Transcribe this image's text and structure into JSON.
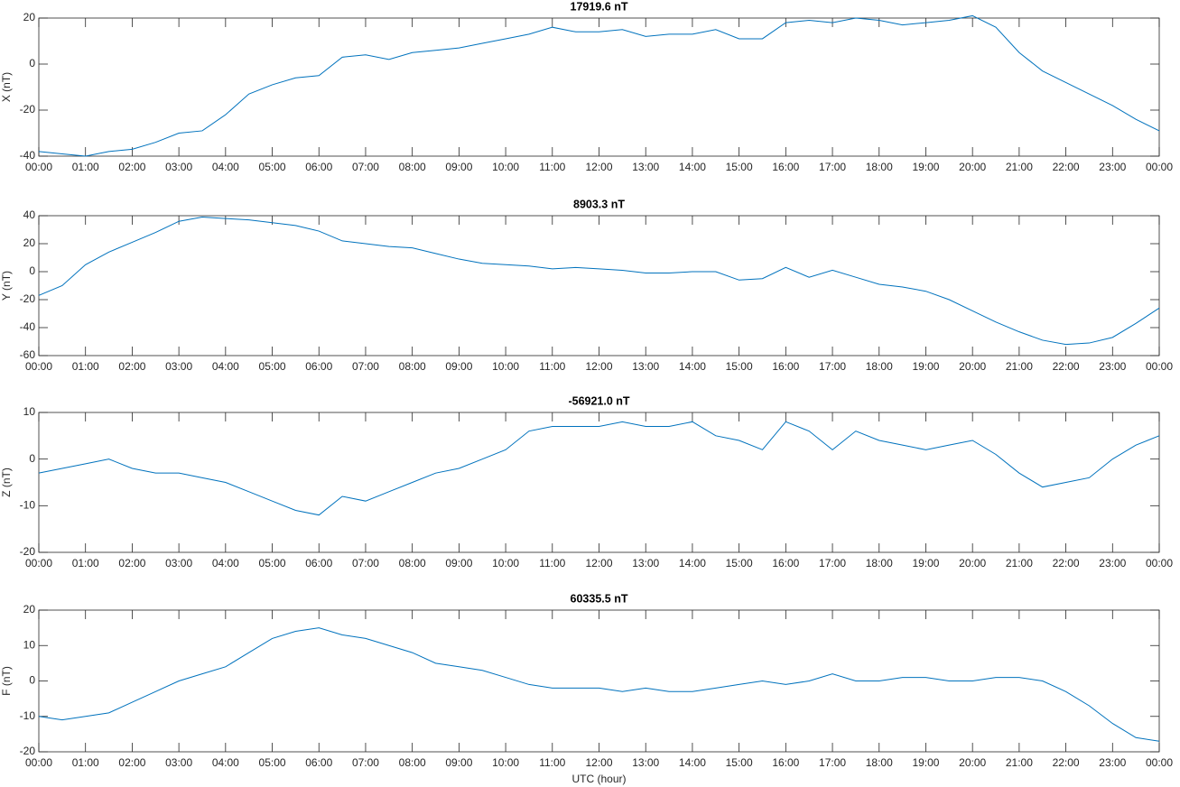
{
  "chart_data": [
    {
      "type": "line",
      "title": "17919.6 nT",
      "ylabel": "X (nT)",
      "xlim": [
        0,
        24
      ],
      "ylim": [
        -40,
        20
      ],
      "yticks": [
        -40,
        -20,
        0,
        20
      ],
      "xticks": [
        {
          "value": 0,
          "label": "00:00"
        },
        {
          "value": 1,
          "label": "01:00"
        },
        {
          "value": 2,
          "label": "02:00"
        },
        {
          "value": 3,
          "label": "03:00"
        },
        {
          "value": 4,
          "label": "04:00"
        },
        {
          "value": 5,
          "label": "05:00"
        },
        {
          "value": 6,
          "label": "06:00"
        },
        {
          "value": 7,
          "label": "07:00"
        },
        {
          "value": 8,
          "label": "08:00"
        },
        {
          "value": 9,
          "label": "09:00"
        },
        {
          "value": 10,
          "label": "10:00"
        },
        {
          "value": 11,
          "label": "11:00"
        },
        {
          "value": 12,
          "label": "12:00"
        },
        {
          "value": 13,
          "label": "13:00"
        },
        {
          "value": 14,
          "label": "14:00"
        },
        {
          "value": 15,
          "label": "15:00"
        },
        {
          "value": 16,
          "label": "16:00"
        },
        {
          "value": 17,
          "label": "17:00"
        },
        {
          "value": 18,
          "label": "18:00"
        },
        {
          "value": 19,
          "label": "19:00"
        },
        {
          "value": 20,
          "label": "20:00"
        },
        {
          "value": 21,
          "label": "21:00"
        },
        {
          "value": 22,
          "label": "22:00"
        },
        {
          "value": 23,
          "label": "23:00"
        },
        {
          "value": 24,
          "label": "00:00"
        }
      ],
      "x": [
        0,
        0.5,
        1,
        1.5,
        2,
        2.5,
        3,
        3.5,
        4,
        4.5,
        5,
        5.5,
        6,
        6.5,
        7,
        7.5,
        8,
        8.5,
        9,
        9.5,
        10,
        10.5,
        11,
        11.5,
        12,
        12.5,
        13,
        13.5,
        14,
        14.5,
        15,
        15.5,
        16,
        16.5,
        17,
        17.5,
        18,
        18.5,
        19,
        19.5,
        20,
        20.5,
        21,
        21.5,
        22,
        22.5,
        23,
        23.5,
        24
      ],
      "series": [
        {
          "color": "#0072bd",
          "values": [
            -38,
            -39,
            -40,
            -38,
            -37,
            -34,
            -30,
            -29,
            -22,
            -13,
            -9,
            -6,
            -5,
            3,
            4,
            2,
            5,
            6,
            7,
            9,
            11,
            13,
            16,
            14,
            14,
            15,
            12,
            13,
            13,
            15,
            11,
            11,
            18,
            19,
            18,
            20,
            19,
            17,
            18,
            19,
            21,
            16,
            5,
            -3,
            -8,
            -13,
            -18,
            -24,
            -29
          ]
        }
      ]
    },
    {
      "type": "line",
      "title": "8903.3 nT",
      "ylabel": "Y (nT)",
      "xlim": [
        0,
        24
      ],
      "ylim": [
        -60,
        40
      ],
      "yticks": [
        -60,
        -40,
        -20,
        0,
        20,
        40
      ],
      "xticks": [
        {
          "value": 0,
          "label": "00:00"
        },
        {
          "value": 1,
          "label": "01:00"
        },
        {
          "value": 2,
          "label": "02:00"
        },
        {
          "value": 3,
          "label": "03:00"
        },
        {
          "value": 4,
          "label": "04:00"
        },
        {
          "value": 5,
          "label": "05:00"
        },
        {
          "value": 6,
          "label": "06:00"
        },
        {
          "value": 7,
          "label": "07:00"
        },
        {
          "value": 8,
          "label": "08:00"
        },
        {
          "value": 9,
          "label": "09:00"
        },
        {
          "value": 10,
          "label": "10:00"
        },
        {
          "value": 11,
          "label": "11:00"
        },
        {
          "value": 12,
          "label": "12:00"
        },
        {
          "value": 13,
          "label": "13:00"
        },
        {
          "value": 14,
          "label": "14:00"
        },
        {
          "value": 15,
          "label": "15:00"
        },
        {
          "value": 16,
          "label": "16:00"
        },
        {
          "value": 17,
          "label": "17:00"
        },
        {
          "value": 18,
          "label": "18:00"
        },
        {
          "value": 19,
          "label": "19:00"
        },
        {
          "value": 20,
          "label": "20:00"
        },
        {
          "value": 21,
          "label": "21:00"
        },
        {
          "value": 22,
          "label": "22:00"
        },
        {
          "value": 23,
          "label": "23:00"
        },
        {
          "value": 24,
          "label": "00:00"
        }
      ],
      "x": [
        0,
        0.5,
        1,
        1.5,
        2,
        2.5,
        3,
        3.5,
        4,
        4.5,
        5,
        5.5,
        6,
        6.5,
        7,
        7.5,
        8,
        8.5,
        9,
        9.5,
        10,
        10.5,
        11,
        11.5,
        12,
        12.5,
        13,
        13.5,
        14,
        14.5,
        15,
        15.5,
        16,
        16.5,
        17,
        17.5,
        18,
        18.5,
        19,
        19.5,
        20,
        20.5,
        21,
        21.5,
        22,
        22.5,
        23,
        23.5,
        24
      ],
      "series": [
        {
          "color": "#0072bd",
          "values": [
            -17,
            -10,
            5,
            14,
            21,
            28,
            36,
            39,
            38,
            37,
            35,
            33,
            29,
            22,
            20,
            18,
            17,
            13,
            9,
            6,
            5,
            4,
            2,
            3,
            2,
            1,
            -1,
            -1,
            0,
            0,
            -6,
            -5,
            3,
            -4,
            1,
            -4,
            -9,
            -11,
            -14,
            -20,
            -28,
            -36,
            -43,
            -49,
            -52,
            -51,
            -47,
            -37,
            -26
          ]
        }
      ]
    },
    {
      "type": "line",
      "title": "-56921.0 nT",
      "ylabel": "Z (nT)",
      "xlim": [
        0,
        24
      ],
      "ylim": [
        -20,
        10
      ],
      "yticks": [
        -20,
        -10,
        0,
        10
      ],
      "xticks": [
        {
          "value": 0,
          "label": "00:00"
        },
        {
          "value": 1,
          "label": "01:00"
        },
        {
          "value": 2,
          "label": "02:00"
        },
        {
          "value": 3,
          "label": "03:00"
        },
        {
          "value": 4,
          "label": "04:00"
        },
        {
          "value": 5,
          "label": "05:00"
        },
        {
          "value": 6,
          "label": "06:00"
        },
        {
          "value": 7,
          "label": "07:00"
        },
        {
          "value": 8,
          "label": "08:00"
        },
        {
          "value": 9,
          "label": "09:00"
        },
        {
          "value": 10,
          "label": "10:00"
        },
        {
          "value": 11,
          "label": "11:00"
        },
        {
          "value": 12,
          "label": "12:00"
        },
        {
          "value": 13,
          "label": "13:00"
        },
        {
          "value": 14,
          "label": "14:00"
        },
        {
          "value": 15,
          "label": "15:00"
        },
        {
          "value": 16,
          "label": "16:00"
        },
        {
          "value": 17,
          "label": "17:00"
        },
        {
          "value": 18,
          "label": "18:00"
        },
        {
          "value": 19,
          "label": "19:00"
        },
        {
          "value": 20,
          "label": "20:00"
        },
        {
          "value": 21,
          "label": "21:00"
        },
        {
          "value": 22,
          "label": "22:00"
        },
        {
          "value": 23,
          "label": "23:00"
        },
        {
          "value": 24,
          "label": "00:00"
        }
      ],
      "x": [
        0,
        0.5,
        1,
        1.5,
        2,
        2.5,
        3,
        3.5,
        4,
        4.5,
        5,
        5.5,
        6,
        6.5,
        7,
        7.5,
        8,
        8.5,
        9,
        9.5,
        10,
        10.5,
        11,
        11.5,
        12,
        12.5,
        13,
        13.5,
        14,
        14.5,
        15,
        15.5,
        16,
        16.5,
        17,
        17.5,
        18,
        18.5,
        19,
        19.5,
        20,
        20.5,
        21,
        21.5,
        22,
        22.5,
        23,
        23.5,
        24
      ],
      "series": [
        {
          "color": "#0072bd",
          "values": [
            -3,
            -2,
            -1,
            0,
            -2,
            -3,
            -3,
            -4,
            -5,
            -7,
            -9,
            -11,
            -12,
            -8,
            -9,
            -7,
            -5,
            -3,
            -2,
            0,
            2,
            6,
            7,
            7,
            7,
            8,
            7,
            7,
            8,
            5,
            4,
            2,
            8,
            6,
            2,
            6,
            4,
            3,
            2,
            3,
            4,
            1,
            -3,
            -6,
            -5,
            -4,
            0,
            3,
            5
          ]
        }
      ]
    },
    {
      "type": "line",
      "title": "60335.5 nT",
      "ylabel": "F (nT)",
      "xlabel": "UTC (hour)",
      "xlim": [
        0,
        24
      ],
      "ylim": [
        -20,
        20
      ],
      "yticks": [
        -20,
        -10,
        0,
        10,
        20
      ],
      "xticks": [
        {
          "value": 0,
          "label": "00:00"
        },
        {
          "value": 1,
          "label": "01:00"
        },
        {
          "value": 2,
          "label": "02:00"
        },
        {
          "value": 3,
          "label": "03:00"
        },
        {
          "value": 4,
          "label": "04:00"
        },
        {
          "value": 5,
          "label": "05:00"
        },
        {
          "value": 6,
          "label": "06:00"
        },
        {
          "value": 7,
          "label": "07:00"
        },
        {
          "value": 8,
          "label": "08:00"
        },
        {
          "value": 9,
          "label": "09:00"
        },
        {
          "value": 10,
          "label": "10:00"
        },
        {
          "value": 11,
          "label": "11:00"
        },
        {
          "value": 12,
          "label": "12:00"
        },
        {
          "value": 13,
          "label": "13:00"
        },
        {
          "value": 14,
          "label": "14:00"
        },
        {
          "value": 15,
          "label": "15:00"
        },
        {
          "value": 16,
          "label": "16:00"
        },
        {
          "value": 17,
          "label": "17:00"
        },
        {
          "value": 18,
          "label": "18:00"
        },
        {
          "value": 19,
          "label": "19:00"
        },
        {
          "value": 20,
          "label": "20:00"
        },
        {
          "value": 21,
          "label": "21:00"
        },
        {
          "value": 22,
          "label": "22:00"
        },
        {
          "value": 23,
          "label": "23:00"
        },
        {
          "value": 24,
          "label": "00:00"
        }
      ],
      "x": [
        0,
        0.5,
        1,
        1.5,
        2,
        2.5,
        3,
        3.5,
        4,
        4.5,
        5,
        5.5,
        6,
        6.5,
        7,
        7.5,
        8,
        8.5,
        9,
        9.5,
        10,
        10.5,
        11,
        11.5,
        12,
        12.5,
        13,
        13.5,
        14,
        14.5,
        15,
        15.5,
        16,
        16.5,
        17,
        17.5,
        18,
        18.5,
        19,
        19.5,
        20,
        20.5,
        21,
        21.5,
        22,
        22.5,
        23,
        23.5,
        24
      ],
      "series": [
        {
          "color": "#0072bd",
          "values": [
            -10,
            -11,
            -10,
            -9,
            -6,
            -3,
            0,
            2,
            4,
            8,
            12,
            14,
            15,
            13,
            12,
            10,
            8,
            5,
            4,
            3,
            1,
            -1,
            -2,
            -2,
            -2,
            -3,
            -2,
            -3,
            -3,
            -2,
            -1,
            0,
            -1,
            0,
            2,
            0,
            0,
            1,
            1,
            0,
            0,
            1,
            1,
            0,
            -3,
            -7,
            -12,
            -16,
            -17
          ]
        }
      ]
    }
  ]
}
